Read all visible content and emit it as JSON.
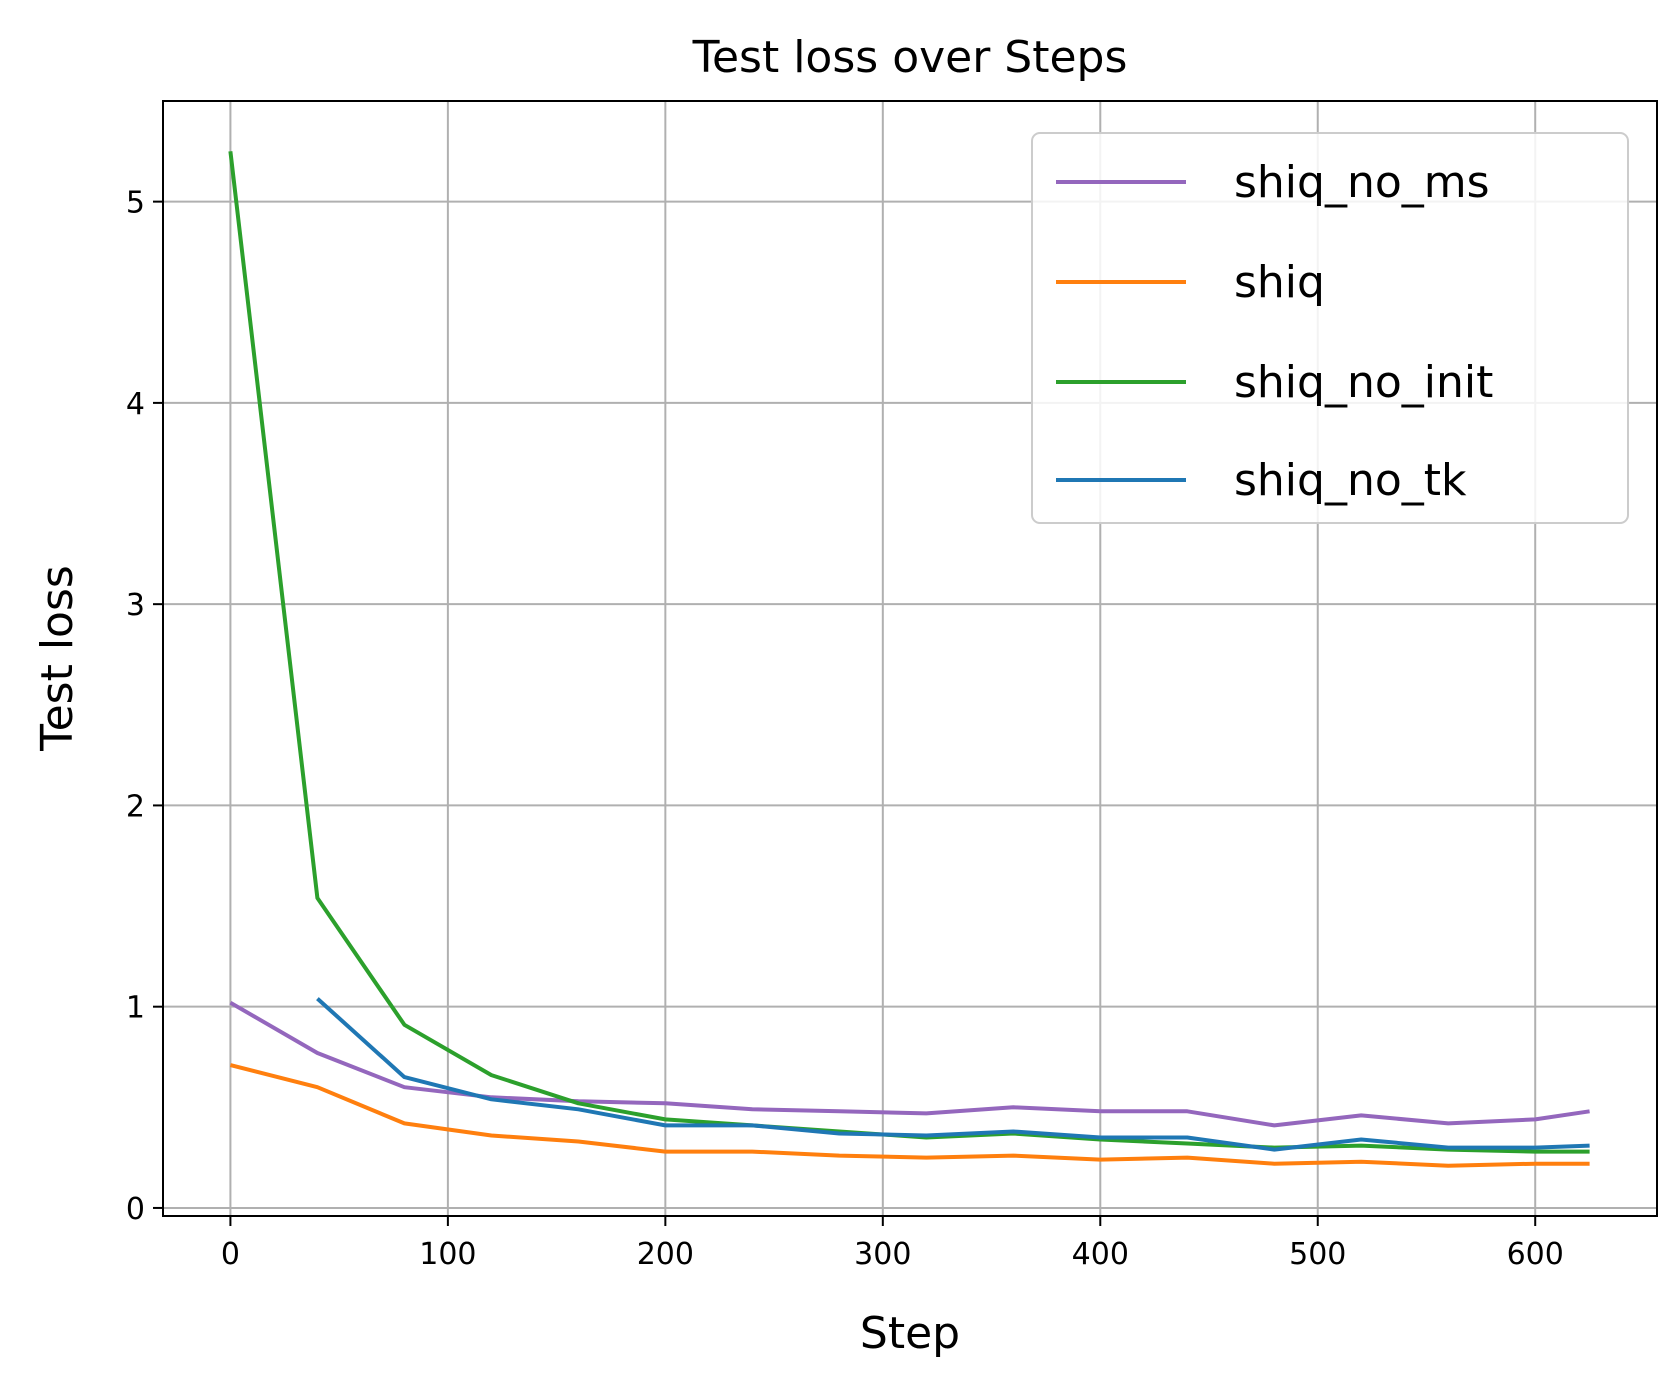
{
  "chart_data": {
    "type": "line",
    "title": "Test loss over Steps",
    "xlabel": "Step",
    "ylabel": "Test loss",
    "xlim": [
      -31,
      656
    ],
    "ylim": [
      -0.04,
      5.5
    ],
    "xticks": [
      0,
      100,
      200,
      300,
      400,
      500,
      600
    ],
    "yticks": [
      0,
      1,
      2,
      3,
      4,
      5
    ],
    "grid": true,
    "legend_position": "top-right",
    "series": [
      {
        "name": "shiq_no_ms",
        "color": "#9467bd",
        "x": [
          0,
          40,
          80,
          120,
          160,
          200,
          240,
          280,
          320,
          360,
          400,
          440,
          480,
          520,
          560,
          600,
          625
        ],
        "y": [
          1.02,
          0.77,
          0.6,
          0.55,
          0.53,
          0.52,
          0.49,
          0.48,
          0.47,
          0.5,
          0.48,
          0.48,
          0.41,
          0.46,
          0.42,
          0.44,
          0.48
        ]
      },
      {
        "name": "shiq",
        "color": "#ff7f0e",
        "x": [
          0,
          40,
          80,
          120,
          160,
          200,
          240,
          280,
          320,
          360,
          400,
          440,
          480,
          520,
          560,
          600,
          625
        ],
        "y": [
          0.71,
          0.6,
          0.42,
          0.36,
          0.33,
          0.28,
          0.28,
          0.26,
          0.25,
          0.26,
          0.24,
          0.25,
          0.22,
          0.23,
          0.21,
          0.22,
          0.22
        ]
      },
      {
        "name": "shiq_no_init",
        "color": "#2ca02c",
        "x": [
          0,
          40,
          80,
          120,
          160,
          200,
          240,
          280,
          320,
          360,
          400,
          440,
          480,
          520,
          560,
          600,
          625
        ],
        "y": [
          5.25,
          1.54,
          0.91,
          0.66,
          0.52,
          0.44,
          0.41,
          0.38,
          0.35,
          0.37,
          0.34,
          0.32,
          0.3,
          0.31,
          0.29,
          0.28,
          0.28
        ]
      },
      {
        "name": "shiq_no_tk",
        "color": "#1f77b4",
        "x": [
          40,
          80,
          120,
          160,
          200,
          240,
          280,
          320,
          360,
          400,
          440,
          480,
          520,
          560,
          600,
          625
        ],
        "y": [
          1.04,
          0.65,
          0.54,
          0.49,
          0.41,
          0.41,
          0.37,
          0.36,
          0.38,
          0.35,
          0.35,
          0.29,
          0.34,
          0.3,
          0.3,
          0.31
        ]
      }
    ]
  }
}
